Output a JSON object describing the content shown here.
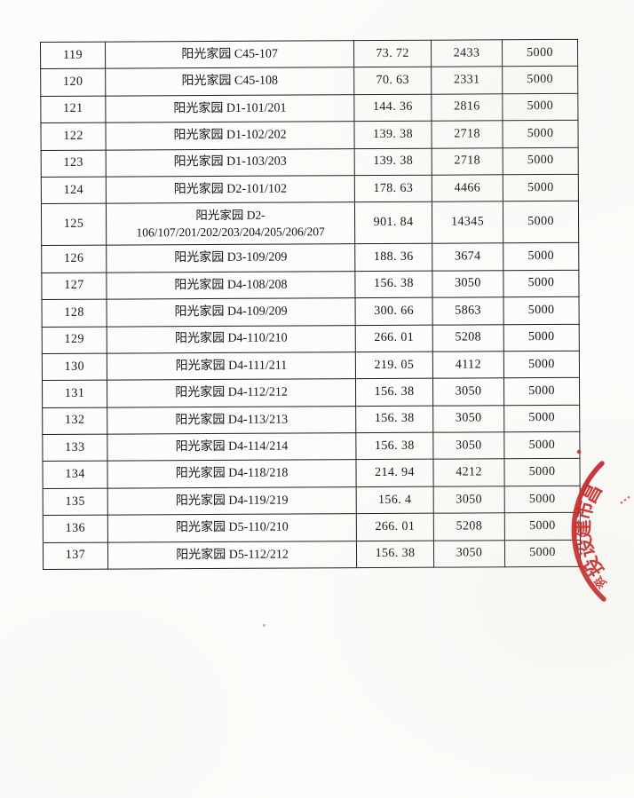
{
  "page": {
    "background_color": "#fcfcfa"
  },
  "table": {
    "rows": [
      {
        "no": "119",
        "name": [
          "阳光家园 C45-107"
        ],
        "area": "73. 72",
        "qty": "2433",
        "fee": "5000"
      },
      {
        "no": "120",
        "name": [
          "阳光家园 C45-108"
        ],
        "area": "70. 63",
        "qty": "2331",
        "fee": "5000"
      },
      {
        "no": "121",
        "name": [
          "阳光家园 D1-101/201"
        ],
        "area": "144. 36",
        "qty": "2816",
        "fee": "5000"
      },
      {
        "no": "122",
        "name": [
          "阳光家园 D1-102/202"
        ],
        "area": "139. 38",
        "qty": "2718",
        "fee": "5000"
      },
      {
        "no": "123",
        "name": [
          "阳光家园 D1-103/203"
        ],
        "area": "139. 38",
        "qty": "2718",
        "fee": "5000"
      },
      {
        "no": "124",
        "name": [
          "阳光家园 D2-101/102"
        ],
        "area": "178. 63",
        "qty": "4466",
        "fee": "5000"
      },
      {
        "no": "125",
        "name": [
          "阳光家园 D2-",
          "106/107/201/202/203/204/205/206/207"
        ],
        "area": "901. 84",
        "qty": "14345",
        "fee": "5000"
      },
      {
        "no": "126",
        "name": [
          "阳光家园 D3-109/209"
        ],
        "area": "188. 36",
        "qty": "3674",
        "fee": "5000"
      },
      {
        "no": "127",
        "name": [
          "阳光家园 D4-108/208"
        ],
        "area": "156. 38",
        "qty": "3050",
        "fee": "5000"
      },
      {
        "no": "128",
        "name": [
          "阳光家园 D4-109/209"
        ],
        "area": "300. 66",
        "qty": "5863",
        "fee": "5000"
      },
      {
        "no": "129",
        "name": [
          "阳光家园 D4-110/210"
        ],
        "area": "266. 01",
        "qty": "5208",
        "fee": "5000"
      },
      {
        "no": "130",
        "name": [
          "阳光家园 D4-111/211"
        ],
        "area": "219. 05",
        "qty": "4112",
        "fee": "5000"
      },
      {
        "no": "131",
        "name": [
          "阳光家园 D4-112/212"
        ],
        "area": "156. 38",
        "qty": "3050",
        "fee": "5000"
      },
      {
        "no": "132",
        "name": [
          "阳光家园 D4-113/213"
        ],
        "area": "156. 38",
        "qty": "3050",
        "fee": "5000"
      },
      {
        "no": "133",
        "name": [
          "阳光家园 D4-114/214"
        ],
        "area": "156. 38",
        "qty": "3050",
        "fee": "5000"
      },
      {
        "no": "134",
        "name": [
          "阳光家园 D4-118/218"
        ],
        "area": "214. 94",
        "qty": "4212",
        "fee": "5000"
      },
      {
        "no": "135",
        "name": [
          "阳光家园 D4-119/219"
        ],
        "area": "156. 4",
        "qty": "3050",
        "fee": "5000"
      },
      {
        "no": "136",
        "name": [
          "阳光家园 D5-110/210"
        ],
        "area": "266. 01",
        "qty": "5208",
        "fee": "5000"
      },
      {
        "no": "137",
        "name": [
          "阳光家园 D5-112/212"
        ],
        "area": "156. 38",
        "qty": "3050",
        "fee": "5000"
      }
    ]
  },
  "stamp": {
    "color": "#c32121",
    "arc_characters": [
      "昌",
      "市",
      "建",
      "设",
      "投",
      "资"
    ]
  }
}
